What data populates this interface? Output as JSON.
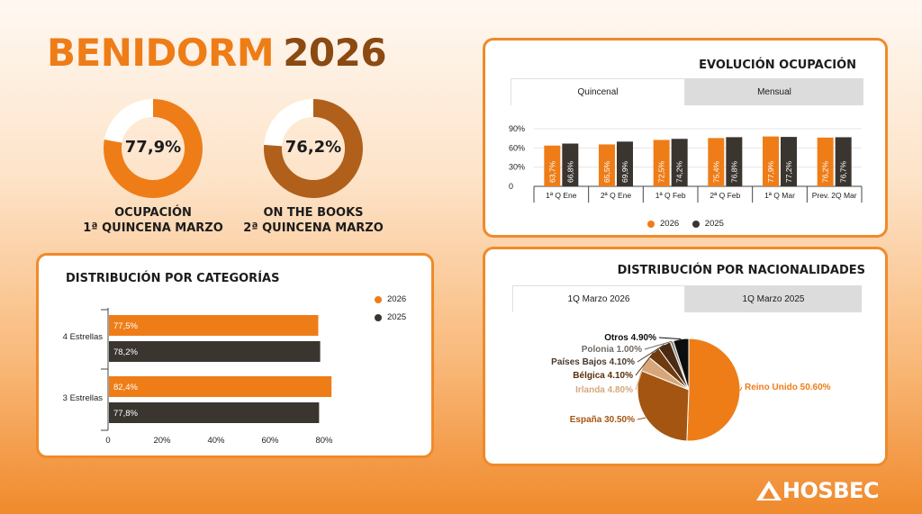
{
  "header": {
    "title_part1": "BENIDORM",
    "title_part2": "2026"
  },
  "kpis": [
    {
      "value_text": "77,9%",
      "value": 77.9,
      "label_line1": "OCUPACIÓN",
      "label_line2": "1ª QUINCENA MARZO",
      "color": "#ee7d18"
    },
    {
      "value_text": "76,2%",
      "value": 76.2,
      "label_line1": "ON THE BOOKS",
      "label_line2": "2ª QUINCENA MARZO",
      "color": "#b0601a"
    }
  ],
  "colors": {
    "y2026": "#ee7d18",
    "y2025": "#3b3530",
    "accent": "#ef8a2a"
  },
  "evolucion": {
    "title": "EVOLUCIÓN OCUPACIÓN",
    "tabs": [
      "Quincenal",
      "Mensual"
    ],
    "active_tab": "Quincenal",
    "legend": [
      "2026",
      "2025"
    ]
  },
  "categorias": {
    "title": "DISTRIBUCIÓN POR CATEGORÍAS",
    "legend": [
      "2026",
      "2025"
    ]
  },
  "nacionalidades": {
    "title": "DISTRIBUCIÓN POR NACIONALIDADES",
    "tabs": [
      "1Q Marzo 2026",
      "1Q Marzo 2025"
    ],
    "active_tab": "1Q Marzo 2026"
  },
  "logo": {
    "text": "HOSBEC"
  },
  "chart_data": [
    {
      "type": "bar",
      "title": "EVOLUCIÓN OCUPACIÓN",
      "categories": [
        "1ª Q Ene",
        "2ª Q Ene",
        "1ª Q Feb",
        "2ª Q Feb",
        "1ª Q Mar",
        "Prev. 2Q Mar"
      ],
      "series": [
        {
          "name": "2026",
          "values": [
            63.7,
            65.5,
            72.5,
            75.4,
            77.9,
            76.2
          ],
          "labels": [
            "63,7%",
            "65,5%",
            "72,5%",
            "75,4%",
            "77,9%",
            "76,2%"
          ]
        },
        {
          "name": "2025",
          "values": [
            66.8,
            69.9,
            74.2,
            76.8,
            77.2,
            76.7
          ],
          "labels": [
            "66,8%",
            "69,9%",
            "74,2%",
            "76,8%",
            "77,2%",
            "76,7%"
          ]
        }
      ],
      "ylim": [
        0,
        90
      ],
      "yticks": [
        "0",
        "30%",
        "60%",
        "90%"
      ],
      "grid": true,
      "legend": "bottom"
    },
    {
      "type": "bar",
      "orientation": "horizontal",
      "title": "DISTRIBUCIÓN POR CATEGORÍAS",
      "categories": [
        "4 Estrellas",
        "3 Estrellas"
      ],
      "series": [
        {
          "name": "2026",
          "values": [
            77.5,
            82.4
          ],
          "labels": [
            "77,5%",
            "82,4%"
          ]
        },
        {
          "name": "2025",
          "values": [
            78.2,
            77.8
          ],
          "labels": [
            "78,2%",
            "77,8%"
          ]
        }
      ],
      "xlim": [
        0,
        85
      ],
      "xticks": [
        "0",
        "20%",
        "40%",
        "60%",
        "80%"
      ],
      "legend": "top-right"
    },
    {
      "type": "pie",
      "title": "DISTRIBUCIÓN POR NACIONALIDADES",
      "slices": [
        {
          "name": "Reino Unido",
          "value": 50.6,
          "label": "Reino Unido 50.60%",
          "color": "#ee7d18",
          "label_color": "#ee7d18"
        },
        {
          "name": "España",
          "value": 30.5,
          "label": "España 30.50%",
          "color": "#a45512",
          "label_color": "#a45512"
        },
        {
          "name": "Irlanda",
          "value": 4.8,
          "label": "Irlanda 4.80%",
          "color": "#d7a77b",
          "label_color": "#d7a77b"
        },
        {
          "name": "Bélgica",
          "value": 4.1,
          "label": "Bélgica 4.10%",
          "color": "#6e3a0e",
          "label_color": "#5a2e0a"
        },
        {
          "name": "Países Bajos",
          "value": 4.1,
          "label": "Países Bajos 4.10%",
          "color": "#4a2a12",
          "label_color": "#4a3a30"
        },
        {
          "name": "Polonia",
          "value": 1.0,
          "label": "Polonia 1.00%",
          "color": "#8f8a86",
          "label_color": "#6f6a66"
        },
        {
          "name": "Otros",
          "value": 4.9,
          "label": "Otros 4.90%",
          "color": "#0d0d0d",
          "label_color": "#0d0d0d"
        }
      ]
    }
  ]
}
